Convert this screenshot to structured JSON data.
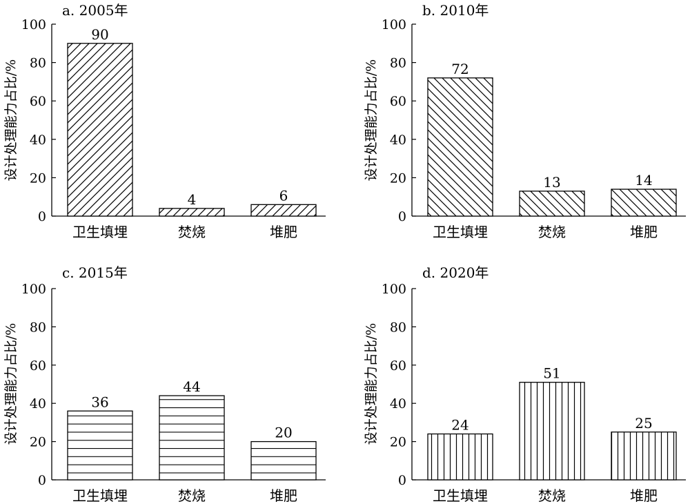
{
  "figure": {
    "colors": {
      "ink": "#000000",
      "background": "#ffffff"
    }
  },
  "chart_data": [
    {
      "type": "bar",
      "title": "a. 2005年",
      "ylabel": "设计处理能力占比/%",
      "categories": [
        "卫生填埋",
        "焚烧",
        "堆肥"
      ],
      "values": [
        90,
        4,
        6
      ],
      "data_labels": [
        "90",
        "4",
        "6"
      ],
      "ylim": [
        0,
        100
      ],
      "yticks": [
        0,
        20,
        40,
        60,
        80,
        100
      ],
      "ytick_labels": [
        "0",
        "20",
        "40",
        "60",
        "80",
        "100"
      ],
      "pattern": "diagonal-up",
      "grid": false
    },
    {
      "type": "bar",
      "title": "b. 2010年",
      "ylabel": "设计处理能力占比/%",
      "categories": [
        "卫生填埋",
        "焚烧",
        "堆肥"
      ],
      "values": [
        72,
        13,
        14
      ],
      "data_labels": [
        "72",
        "13",
        "14"
      ],
      "ylim": [
        0,
        100
      ],
      "yticks": [
        0,
        20,
        40,
        60,
        80,
        100
      ],
      "ytick_labels": [
        "0",
        "20",
        "40",
        "60",
        "80",
        "100"
      ],
      "pattern": "diagonal-down",
      "grid": false
    },
    {
      "type": "bar",
      "title": "c. 2015年",
      "ylabel": "设计处理能力占比/%",
      "categories": [
        "卫生填埋",
        "焚烧",
        "堆肥"
      ],
      "values": [
        36,
        44,
        20
      ],
      "data_labels": [
        "36",
        "44",
        "20"
      ],
      "ylim": [
        0,
        100
      ],
      "yticks": [
        0,
        20,
        40,
        60,
        80,
        100
      ],
      "ytick_labels": [
        "0",
        "20",
        "40",
        "60",
        "80",
        "100"
      ],
      "pattern": "horizontal",
      "grid": false
    },
    {
      "type": "bar",
      "title": "d. 2020年",
      "ylabel": "设计处理能力占比/%",
      "categories": [
        "卫生填埋",
        "焚烧",
        "堆肥"
      ],
      "values": [
        24,
        51,
        25
      ],
      "data_labels": [
        "24",
        "51",
        "25"
      ],
      "ylim": [
        0,
        100
      ],
      "yticks": [
        0,
        20,
        40,
        60,
        80,
        100
      ],
      "ytick_labels": [
        "0",
        "20",
        "40",
        "60",
        "80",
        "100"
      ],
      "pattern": "vertical",
      "grid": false
    }
  ]
}
